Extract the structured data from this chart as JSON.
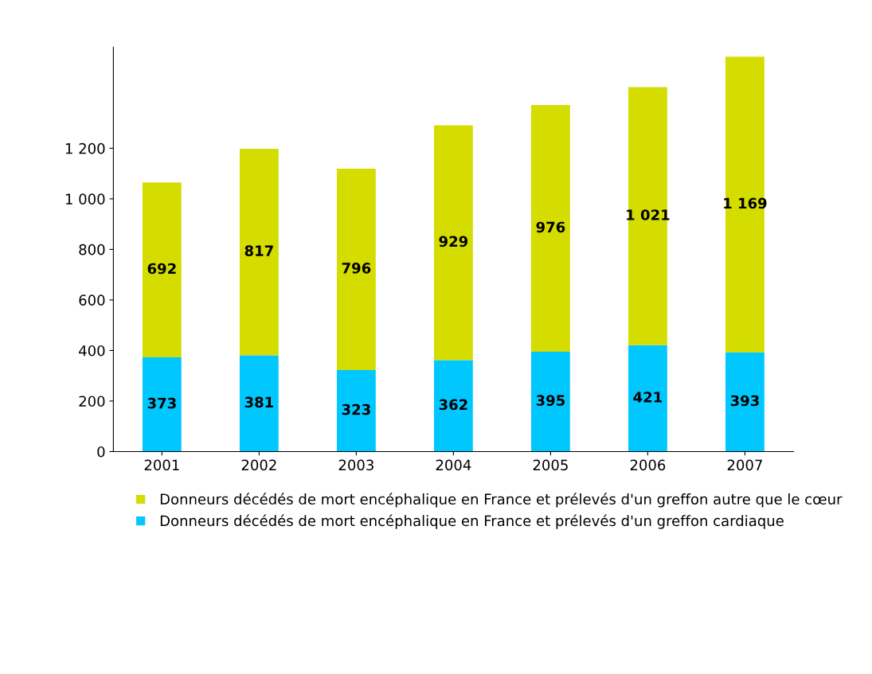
{
  "chart_data": {
    "type": "bar",
    "stacked": true,
    "categories": [
      "2001",
      "2002",
      "2003",
      "2004",
      "2005",
      "2006",
      "2007"
    ],
    "series": [
      {
        "name": "Donneurs décédés de mort encéphalique en France et prélevés d'un greffon cardiaque",
        "color": "#00c8ff",
        "values": [
          373,
          381,
          323,
          362,
          395,
          421,
          393
        ],
        "value_labels": [
          "373",
          "381",
          "323",
          "362",
          "395",
          "421",
          "393"
        ]
      },
      {
        "name": "Donneurs décédés de mort encéphalique en France et prélevés d'un greffon autre que le cœur",
        "color": "#d4dc00",
        "values": [
          692,
          817,
          796,
          929,
          976,
          1021,
          1169
        ],
        "value_labels": [
          "692",
          "817",
          "796",
          "929",
          "976",
          "1 021",
          "1 169"
        ]
      }
    ],
    "ylim": [
      0,
      1600
    ],
    "yticks": [
      0,
      200,
      400,
      600,
      800,
      {
        "value": 1000,
        "label": "1 000"
      },
      {
        "value": 1200,
        "label": "1 200"
      }
    ],
    "grid": false,
    "legend": "bottom"
  }
}
